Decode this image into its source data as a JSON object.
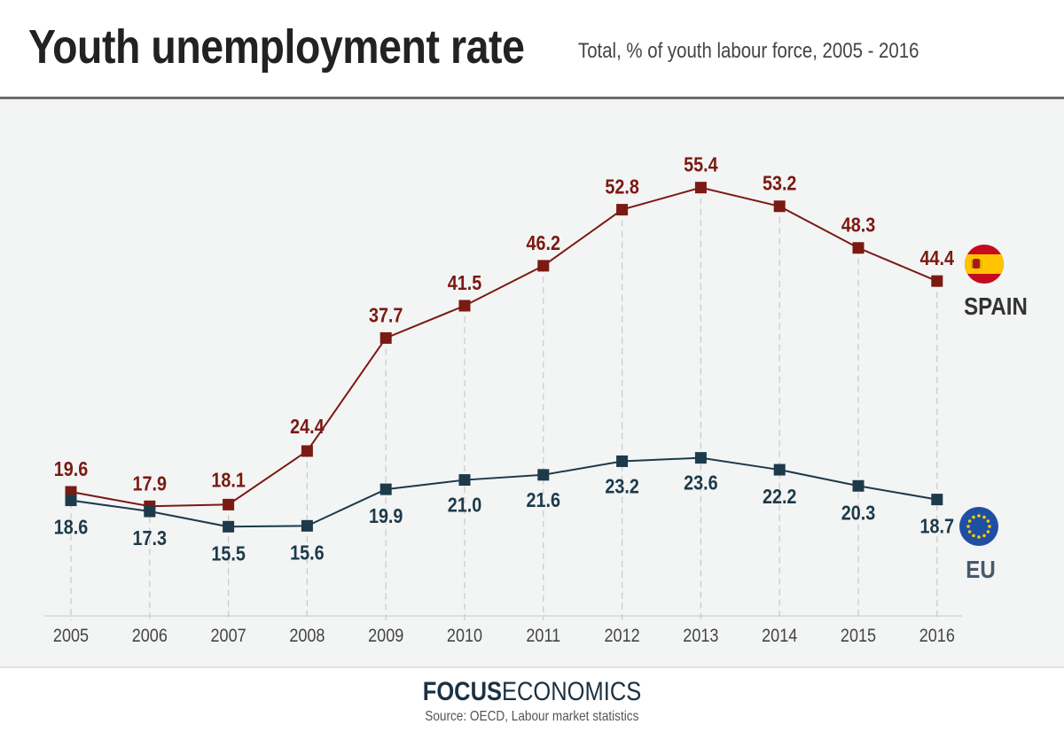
{
  "header": {
    "title": "Youth unemployment rate",
    "subtitle": "Total, % of youth labour force, 2005 - 2016"
  },
  "footer": {
    "brand_bold": "FOCUS",
    "brand_regular": "ECONOMICS",
    "source": "Source: OECD, Labour market statistics"
  },
  "colors": {
    "spain": "#7a1a12",
    "eu": "#1c3a4a",
    "gridline": "#c8c8c8"
  },
  "chart_data": {
    "type": "line",
    "title": "Youth unemployment rate",
    "subtitle": "Total, % of youth labour force, 2005 - 2016",
    "x": [
      "2005",
      "2006",
      "2007",
      "2008",
      "2009",
      "2010",
      "2011",
      "2012",
      "2013",
      "2014",
      "2015",
      "2016"
    ],
    "ylim": [
      5,
      58
    ],
    "grid": "vertical dashed",
    "series": [
      {
        "name": "SPAIN",
        "color": "#7a1a12",
        "flag_icon": "spain-flag-icon",
        "values": [
          19.6,
          17.9,
          18.1,
          24.4,
          37.7,
          41.5,
          46.2,
          52.8,
          55.4,
          53.2,
          48.3,
          44.4
        ],
        "labels": [
          "19.6",
          "17.9",
          "18.1",
          "24.4",
          "37.7",
          "41.5",
          "46.2",
          "52.8",
          "55.4",
          "53.2",
          "48.3",
          "44.4"
        ]
      },
      {
        "name": "EU",
        "color": "#1c3a4a",
        "flag_icon": "eu-flag-icon",
        "values": [
          18.6,
          17.3,
          15.5,
          15.6,
          19.9,
          21.0,
          21.6,
          23.2,
          23.6,
          22.2,
          20.3,
          18.7
        ],
        "labels": [
          "18.6",
          "17.3",
          "15.5",
          "15.6",
          "19.9",
          "21.0",
          "21.6",
          "23.2",
          "23.6",
          "22.2",
          "20.3",
          "18.7"
        ]
      }
    ]
  }
}
